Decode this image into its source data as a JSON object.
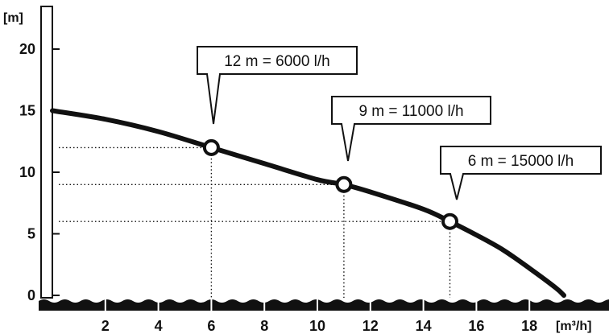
{
  "chart_data": {
    "type": "line",
    "title": "",
    "xlabel": "[m³/h]",
    "ylabel": "[m]",
    "xlim": [
      0,
      19.3
    ],
    "ylim": [
      0,
      22
    ],
    "x_ticks": [
      "2",
      "4",
      "6",
      "8",
      "10",
      "12",
      "14",
      "16",
      "18"
    ],
    "y_ticks": [
      "0",
      "5",
      "10",
      "15",
      "20"
    ],
    "grid": false,
    "series": [
      {
        "x": [
          0,
          2,
          4,
          6,
          8,
          10,
          11,
          12,
          14,
          15,
          16,
          17,
          18,
          19,
          19.3
        ],
        "y": [
          15,
          14.3,
          13.3,
          12,
          10.7,
          9.4,
          9,
          8.4,
          7.0,
          6,
          4.9,
          3.7,
          2.2,
          0.6,
          0
        ]
      }
    ],
    "annotations": [
      {
        "x": 6,
        "y": 12,
        "label": "12 m = 6000 l/h"
      },
      {
        "x": 11,
        "y": 9,
        "label": "9 m = 11000 l/h"
      },
      {
        "x": 15,
        "y": 6,
        "label": "6 m = 15000 l/h"
      }
    ]
  }
}
